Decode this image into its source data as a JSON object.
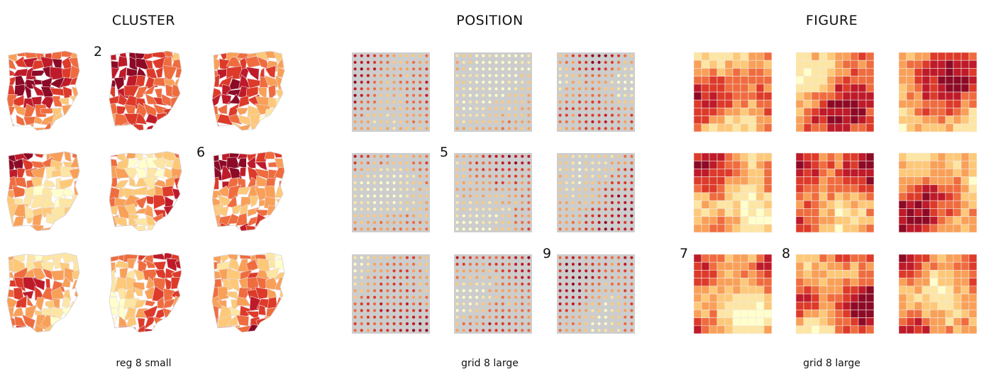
{
  "palette": [
    "#ffffcc",
    "#fde6a3",
    "#fdc979",
    "#f9a058",
    "#ef6c3f",
    "#dd3a2a",
    "#be1a2a",
    "#8c0a26"
  ],
  "dot_background": "#cdcdcd",
  "panels": [
    {
      "id": "cluster",
      "title": "CLUSTER",
      "caption": "reg 8 small",
      "kind": "map",
      "labels": [
        {
          "cell": 1,
          "text": "2"
        },
        {
          "cell": 5,
          "text": "6"
        }
      ]
    },
    {
      "id": "position",
      "title": "POSITION",
      "caption": "grid 8 large",
      "kind": "dots",
      "labels": [
        {
          "cell": 4,
          "text": "5"
        },
        {
          "cell": 8,
          "text": "9"
        }
      ]
    },
    {
      "id": "figure",
      "title": "FIGURE",
      "caption": "grid 8 large",
      "kind": "squares",
      "labels": [
        {
          "cell": 6,
          "text": "7"
        },
        {
          "cell": 7,
          "text": "8"
        }
      ]
    }
  ]
}
